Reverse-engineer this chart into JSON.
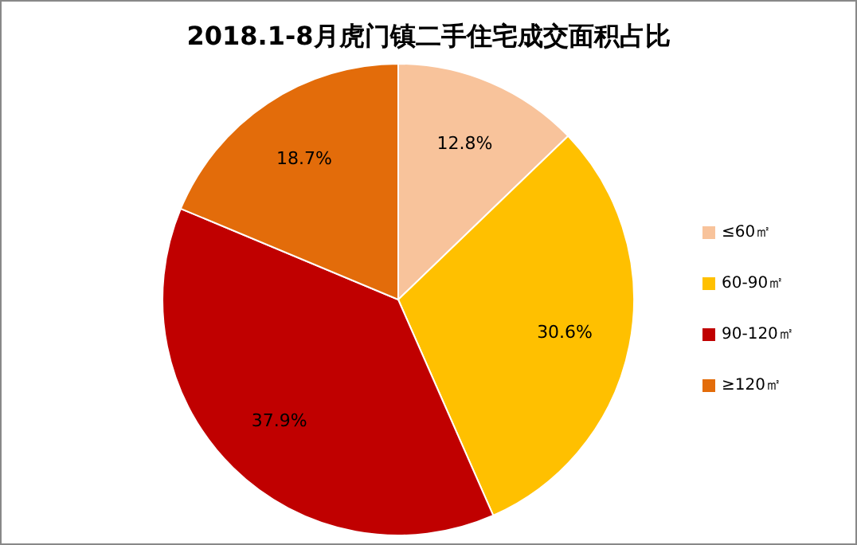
{
  "chart_data": {
    "type": "pie",
    "title": "2018.1-8月虎门镇二手住宅成交面积占比",
    "categories": [
      "≤60㎡",
      "60-90㎡",
      "90-120㎡",
      "≥120㎡"
    ],
    "values": [
      12.8,
      30.6,
      37.9,
      18.7
    ],
    "colors": [
      "#f8c39b",
      "#ffc000",
      "#c00000",
      "#e36c0a"
    ],
    "value_labels": [
      "12.8%",
      "30.6%",
      "37.9%",
      "18.7%"
    ],
    "legend": "right"
  }
}
